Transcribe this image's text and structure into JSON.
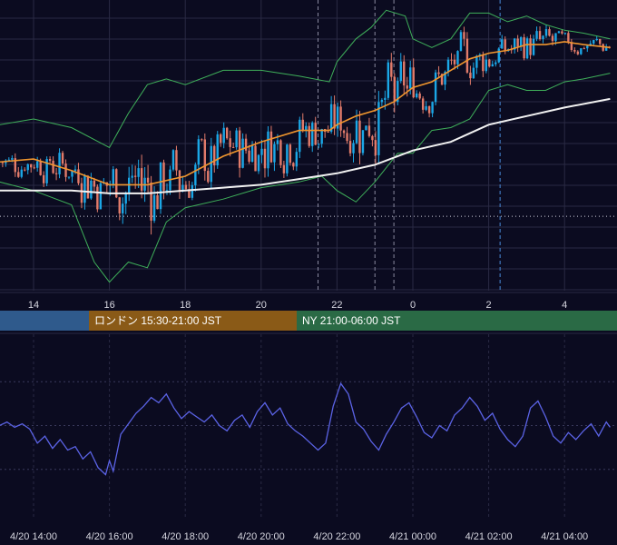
{
  "colors": {
    "background": "#0b0b20",
    "grid": "#2a2a44",
    "candle_up": "#1ba7e6",
    "candle_down": "#e27b6a",
    "bollinger": "#3fb05a",
    "ma_orange": "#f0962e",
    "ma_white": "#f2f2f2",
    "oscillator": "#5b63e6",
    "session_tokyo": "#2f5a8c",
    "session_london": "#8a5a17",
    "session_ny": "#2a6a45"
  },
  "sessions": [
    {
      "id": "tokyo",
      "label": ""
    },
    {
      "id": "london",
      "label": "ロンドン 15:30-21:00 JST"
    },
    {
      "id": "ny",
      "label": "NY 21:00-06:00 JST"
    }
  ],
  "chart_data": {
    "type": "candlestick",
    "title": "",
    "price_axis_labels": [
      "14",
      "16",
      "18",
      "20",
      "22",
      "0",
      "2",
      "4"
    ],
    "time_axis_labels": [
      "4/20 14:00",
      "4/20 16:00",
      "4/20 18:00",
      "4/20 20:00",
      "4/20 22:00",
      "4/21 00:00",
      "4/21 02:00",
      "4/21 04:00"
    ],
    "time_range_hours": [
      13.1,
      29.2
    ],
    "price_range": [
      0,
      100
    ],
    "bollinger_upper": [
      [
        13.1,
        58
      ],
      [
        14,
        60
      ],
      [
        15,
        57
      ],
      [
        16,
        50
      ],
      [
        16.5,
        62
      ],
      [
        17,
        72
      ],
      [
        17.5,
        74
      ],
      [
        18,
        72
      ],
      [
        19,
        77
      ],
      [
        20,
        77
      ],
      [
        21,
        75
      ],
      [
        21.8,
        73
      ],
      [
        22,
        80
      ],
      [
        22.5,
        88
      ],
      [
        22.9,
        92
      ],
      [
        23.3,
        98
      ],
      [
        23.8,
        96
      ],
      [
        24,
        88
      ],
      [
        24.5,
        85
      ],
      [
        25,
        88
      ],
      [
        25.5,
        97
      ],
      [
        26,
        97
      ],
      [
        26.5,
        94
      ],
      [
        27,
        96
      ],
      [
        27.5,
        93
      ],
      [
        28,
        91
      ],
      [
        28.5,
        90
      ],
      [
        29.2,
        88
      ]
    ],
    "bollinger_lower": [
      [
        13.1,
        38
      ],
      [
        14,
        35
      ],
      [
        15,
        30
      ],
      [
        15.6,
        10
      ],
      [
        16,
        3
      ],
      [
        16.5,
        10
      ],
      [
        17,
        8
      ],
      [
        17.5,
        24
      ],
      [
        18,
        29
      ],
      [
        19,
        32
      ],
      [
        20,
        36
      ],
      [
        21,
        38
      ],
      [
        21.6,
        40
      ],
      [
        22,
        35
      ],
      [
        22.5,
        31
      ],
      [
        23,
        38
      ],
      [
        23.6,
        48
      ],
      [
        24,
        48
      ],
      [
        24.5,
        56
      ],
      [
        25,
        57
      ],
      [
        25.5,
        60
      ],
      [
        26,
        70
      ],
      [
        26.5,
        72
      ],
      [
        27,
        70
      ],
      [
        27.5,
        70
      ],
      [
        28,
        73
      ],
      [
        28.5,
        74
      ],
      [
        29.2,
        76
      ]
    ],
    "ma_orange": [
      [
        13.1,
        45
      ],
      [
        14,
        46
      ],
      [
        15,
        42
      ],
      [
        16,
        37
      ],
      [
        17,
        37
      ],
      [
        18,
        40
      ],
      [
        19,
        47
      ],
      [
        20,
        52
      ],
      [
        21,
        56
      ],
      [
        21.8,
        56
      ],
      [
        22,
        58
      ],
      [
        22.5,
        61
      ],
      [
        23,
        63
      ],
      [
        23.5,
        66
      ],
      [
        24,
        71
      ],
      [
        24.5,
        73
      ],
      [
        25,
        77
      ],
      [
        25.5,
        81
      ],
      [
        26,
        83
      ],
      [
        26.5,
        84
      ],
      [
        27,
        86
      ],
      [
        27.5,
        86
      ],
      [
        28,
        87
      ],
      [
        28.5,
        86
      ],
      [
        29.2,
        85
      ]
    ],
    "ma_white": [
      [
        13.1,
        35
      ],
      [
        14,
        35
      ],
      [
        15,
        35
      ],
      [
        16,
        34
      ],
      [
        17,
        34
      ],
      [
        18,
        35
      ],
      [
        19,
        36
      ],
      [
        20,
        37
      ],
      [
        21,
        39
      ],
      [
        22,
        41
      ],
      [
        23,
        44
      ],
      [
        24,
        49
      ],
      [
        25,
        52
      ],
      [
        26,
        58
      ],
      [
        27,
        61
      ],
      [
        28,
        64
      ],
      [
        29.2,
        67
      ]
    ],
    "price_level": 26,
    "oscillator": [
      [
        13.1,
        50
      ],
      [
        13.3,
        52
      ],
      [
        13.5,
        49
      ],
      [
        13.7,
        51
      ],
      [
        13.9,
        48
      ],
      [
        14.1,
        40
      ],
      [
        14.3,
        44
      ],
      [
        14.5,
        37
      ],
      [
        14.7,
        42
      ],
      [
        14.9,
        36
      ],
      [
        15.1,
        38
      ],
      [
        15.3,
        31
      ],
      [
        15.5,
        35
      ],
      [
        15.7,
        26
      ],
      [
        15.9,
        22
      ],
      [
        16.0,
        30
      ],
      [
        16.1,
        24
      ],
      [
        16.3,
        45
      ],
      [
        16.5,
        51
      ],
      [
        16.7,
        57
      ],
      [
        16.9,
        61
      ],
      [
        17.1,
        66
      ],
      [
        17.3,
        63
      ],
      [
        17.5,
        68
      ],
      [
        17.7,
        60
      ],
      [
        17.9,
        54
      ],
      [
        18.1,
        58
      ],
      [
        18.3,
        55
      ],
      [
        18.5,
        52
      ],
      [
        18.7,
        56
      ],
      [
        18.9,
        50
      ],
      [
        19.1,
        47
      ],
      [
        19.3,
        53
      ],
      [
        19.5,
        56
      ],
      [
        19.7,
        49
      ],
      [
        19.9,
        58
      ],
      [
        20.1,
        63
      ],
      [
        20.3,
        56
      ],
      [
        20.5,
        60
      ],
      [
        20.7,
        51
      ],
      [
        20.9,
        47
      ],
      [
        21.1,
        44
      ],
      [
        21.3,
        40
      ],
      [
        21.5,
        36
      ],
      [
        21.7,
        40
      ],
      [
        21.9,
        61
      ],
      [
        22.1,
        74
      ],
      [
        22.3,
        68
      ],
      [
        22.5,
        52
      ],
      [
        22.7,
        48
      ],
      [
        22.9,
        41
      ],
      [
        23.1,
        36
      ],
      [
        23.3,
        45
      ],
      [
        23.5,
        52
      ],
      [
        23.7,
        60
      ],
      [
        23.9,
        63
      ],
      [
        24.1,
        55
      ],
      [
        24.3,
        46
      ],
      [
        24.5,
        43
      ],
      [
        24.7,
        50
      ],
      [
        24.9,
        47
      ],
      [
        25.1,
        56
      ],
      [
        25.3,
        60
      ],
      [
        25.5,
        66
      ],
      [
        25.7,
        61
      ],
      [
        25.9,
        53
      ],
      [
        26.1,
        57
      ],
      [
        26.3,
        48
      ],
      [
        26.5,
        42
      ],
      [
        26.7,
        38
      ],
      [
        26.9,
        44
      ],
      [
        27.1,
        60
      ],
      [
        27.3,
        64
      ],
      [
        27.5,
        55
      ],
      [
        27.7,
        44
      ],
      [
        27.9,
        40
      ],
      [
        28.1,
        46
      ],
      [
        28.3,
        42
      ],
      [
        28.5,
        47
      ],
      [
        28.7,
        51
      ],
      [
        28.9,
        44
      ],
      [
        29.1,
        52
      ],
      [
        29.2,
        49
      ]
    ],
    "oscillator_range": [
      0,
      100
    ]
  }
}
